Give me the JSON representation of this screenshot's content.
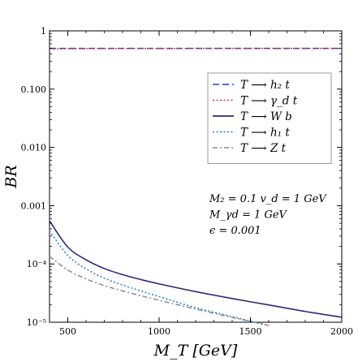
{
  "chart_data": {
    "type": "line",
    "title": "",
    "xlabel": "M_T [GeV]",
    "ylabel": "BR",
    "x_scale": "linear",
    "y_scale": "log",
    "xlim": [
      400,
      2000
    ],
    "ylim": [
      1e-05,
      1
    ],
    "x_ticks": [
      500,
      1000,
      1500,
      2000
    ],
    "x_tick_labels": [
      "500",
      "1000",
      "1500",
      "2000"
    ],
    "y_ticks": [
      1e-05,
      0.0001,
      0.001,
      0.01,
      0.1,
      1
    ],
    "y_tick_labels": [
      "10⁻⁵",
      "10⁻⁴",
      "0.001",
      "0.010",
      "0.100",
      "1"
    ],
    "grid": false,
    "legend_position": "top-right",
    "series": [
      {
        "name": "T ⟶ h₂ t",
        "color": "#1f3fe0",
        "dash": "dashed",
        "x": [
          400,
          600,
          800,
          1000,
          1200,
          1400,
          1600,
          1800,
          2000
        ],
        "y": [
          0.5,
          0.5,
          0.5,
          0.5,
          0.5,
          0.5,
          0.5,
          0.5,
          0.5
        ]
      },
      {
        "name": "T ⟶ γ_d t",
        "color": "#e0302a",
        "dash": "dotted",
        "x": [
          400,
          600,
          800,
          1000,
          1200,
          1400,
          1600,
          1800,
          2000
        ],
        "y": [
          0.49,
          0.495,
          0.497,
          0.498,
          0.499,
          0.499,
          0.4995,
          0.4997,
          0.4998
        ]
      },
      {
        "name": "T ⟶ W b",
        "color": "#2a2a7a",
        "dash": "solid",
        "x": [
          400,
          500,
          600,
          700,
          800,
          900,
          1000,
          1200,
          1400,
          1600,
          1800,
          2000
        ],
        "y": [
          0.00055,
          0.000195,
          0.000118,
          8.35e-05,
          6.55e-05,
          5.4e-05,
          4.55e-05,
          3.35e-05,
          2.55e-05,
          1.98e-05,
          1.53e-05,
          1.22e-05
        ]
      },
      {
        "name": "T ⟶ h₁ t",
        "color": "#1f7fd8",
        "dash": "dotted",
        "x": [
          400,
          500,
          600,
          700,
          800,
          900,
          1000,
          1200,
          1400,
          1600
        ],
        "y": [
          0.00037,
          0.00014,
          8.25e-05,
          5.7e-05,
          4.35e-05,
          3.45e-05,
          2.75e-05,
          1.78e-05,
          1.25e-05,
          8.8e-06
        ]
      },
      {
        "name": "T ⟶ Z t",
        "color": "#8a8a8a",
        "dash": "dashdot",
        "x": [
          400,
          500,
          600,
          700,
          800,
          900,
          1000,
          1200,
          1400,
          1600
        ],
        "y": [
          0.000135,
          7.85e-05,
          5.55e-05,
          4.25e-05,
          3.45e-05,
          2.85e-05,
          2.38e-05,
          1.68e-05,
          1.21e-05,
          8.8e-06
        ]
      }
    ],
    "annotations": [
      "M₂ = 0.1 v_d = 1 GeV",
      "M_γd = 1 GeV",
      "ϵ = 0.001"
    ]
  }
}
